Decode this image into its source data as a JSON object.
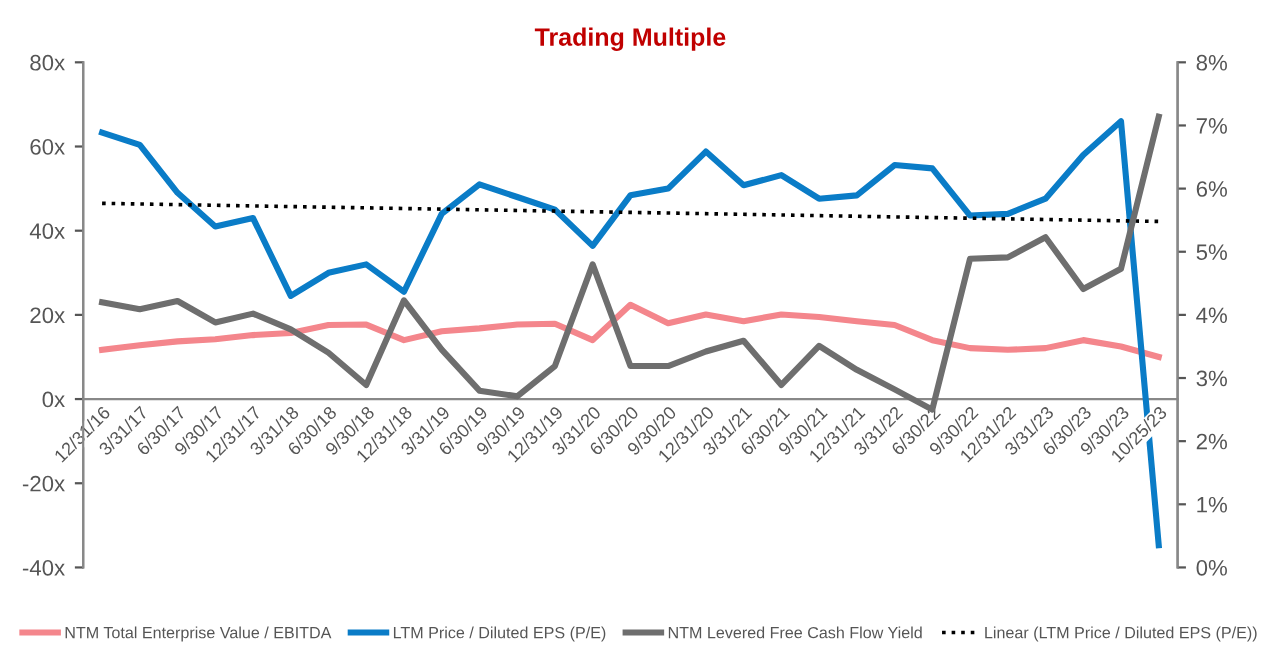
{
  "chart_data": {
    "type": "line",
    "title": "Trading Multiple",
    "categories": [
      "12/31/16",
      "3/31/17",
      "6/30/17",
      "9/30/17",
      "12/31/17",
      "3/31/18",
      "6/30/18",
      "9/30/18",
      "12/31/18",
      "3/31/19",
      "6/30/19",
      "9/30/19",
      "12/31/19",
      "3/31/20",
      "6/30/20",
      "9/30/20",
      "12/31/20",
      "3/31/21",
      "6/30/21",
      "9/30/21",
      "12/31/21",
      "3/31/22",
      "6/30/22",
      "9/30/22",
      "12/31/22",
      "3/31/23",
      "6/30/23",
      "9/30/23",
      "10/25/23"
    ],
    "series": [
      {
        "name": "NTM Total Enterprise Value / EBITDA",
        "color": "#f4868c",
        "values": [
          11.7,
          12.8,
          13.7,
          14.2,
          15.2,
          15.7,
          17.6,
          17.7,
          14,
          16.1,
          16.8,
          17.7,
          17.9,
          14,
          22.4,
          18,
          20.1,
          18.5,
          20.1,
          19.5,
          18.5,
          17.6,
          14,
          12.1,
          11.7,
          12.1,
          14,
          12.5,
          10
        ]
      },
      {
        "name": "LTM Price / Diluted EPS (P/E)",
        "color": "#0a7cc7",
        "values": [
          63.3,
          60.4,
          49,
          41,
          43,
          24.5,
          30,
          32,
          25.5,
          44,
          51,
          48,
          45,
          36.4,
          48.4,
          50,
          58.8,
          50.8,
          53.2,
          47.6,
          48.4,
          55.6,
          54.8,
          43.6,
          44,
          47.6,
          58,
          66,
          -34.7
        ]
      },
      {
        "name": "NTM Levered Free Cash Flow Yield",
        "color": "#6e6e6e",
        "axis": "y2",
        "values": [
          4.2,
          4.09,
          4.22,
          3.88,
          4.02,
          3.77,
          3.4,
          2.89,
          4.23,
          3.45,
          2.8,
          2.71,
          3.19,
          4.8,
          3.19,
          3.19,
          3.42,
          3.59,
          2.89,
          3.51,
          3.13,
          2.82,
          2.5,
          4.89,
          4.91,
          5.23,
          4.41,
          4.73,
          7.14
        ]
      },
      {
        "name": "Linear (LTM Price / Diluted EPS (P/E))",
        "color": "#000000",
        "line_style": "dotted",
        "values": [
          46.5,
          null,
          null,
          null,
          null,
          null,
          null,
          null,
          null,
          null,
          null,
          null,
          null,
          null,
          null,
          null,
          null,
          null,
          null,
          null,
          null,
          null,
          null,
          null,
          null,
          null,
          null,
          null,
          42.2
        ]
      }
    ],
    "ylim": [
      -40,
      80
    ],
    "yticks": [
      {
        "value": -40,
        "label": "-40x"
      },
      {
        "value": -20,
        "label": "-20x"
      },
      {
        "value": 0,
        "label": "0x"
      },
      {
        "value": 20,
        "label": "20x"
      },
      {
        "value": 40,
        "label": "40x"
      },
      {
        "value": 60,
        "label": "60x"
      },
      {
        "value": 80,
        "label": "80x"
      }
    ],
    "y2lim": [
      0,
      8
    ],
    "y2ticks": [
      {
        "value": 0,
        "label": "0%"
      },
      {
        "value": 1,
        "label": "1%"
      },
      {
        "value": 2,
        "label": "2%"
      },
      {
        "value": 3,
        "label": "3%"
      },
      {
        "value": 4,
        "label": "4%"
      },
      {
        "value": 5,
        "label": "5%"
      },
      {
        "value": 6,
        "label": "6%"
      },
      {
        "value": 7,
        "label": "7%"
      },
      {
        "value": 8,
        "label": "8%"
      }
    ],
    "grid": false,
    "legend": "bottom",
    "marker": "none"
  }
}
